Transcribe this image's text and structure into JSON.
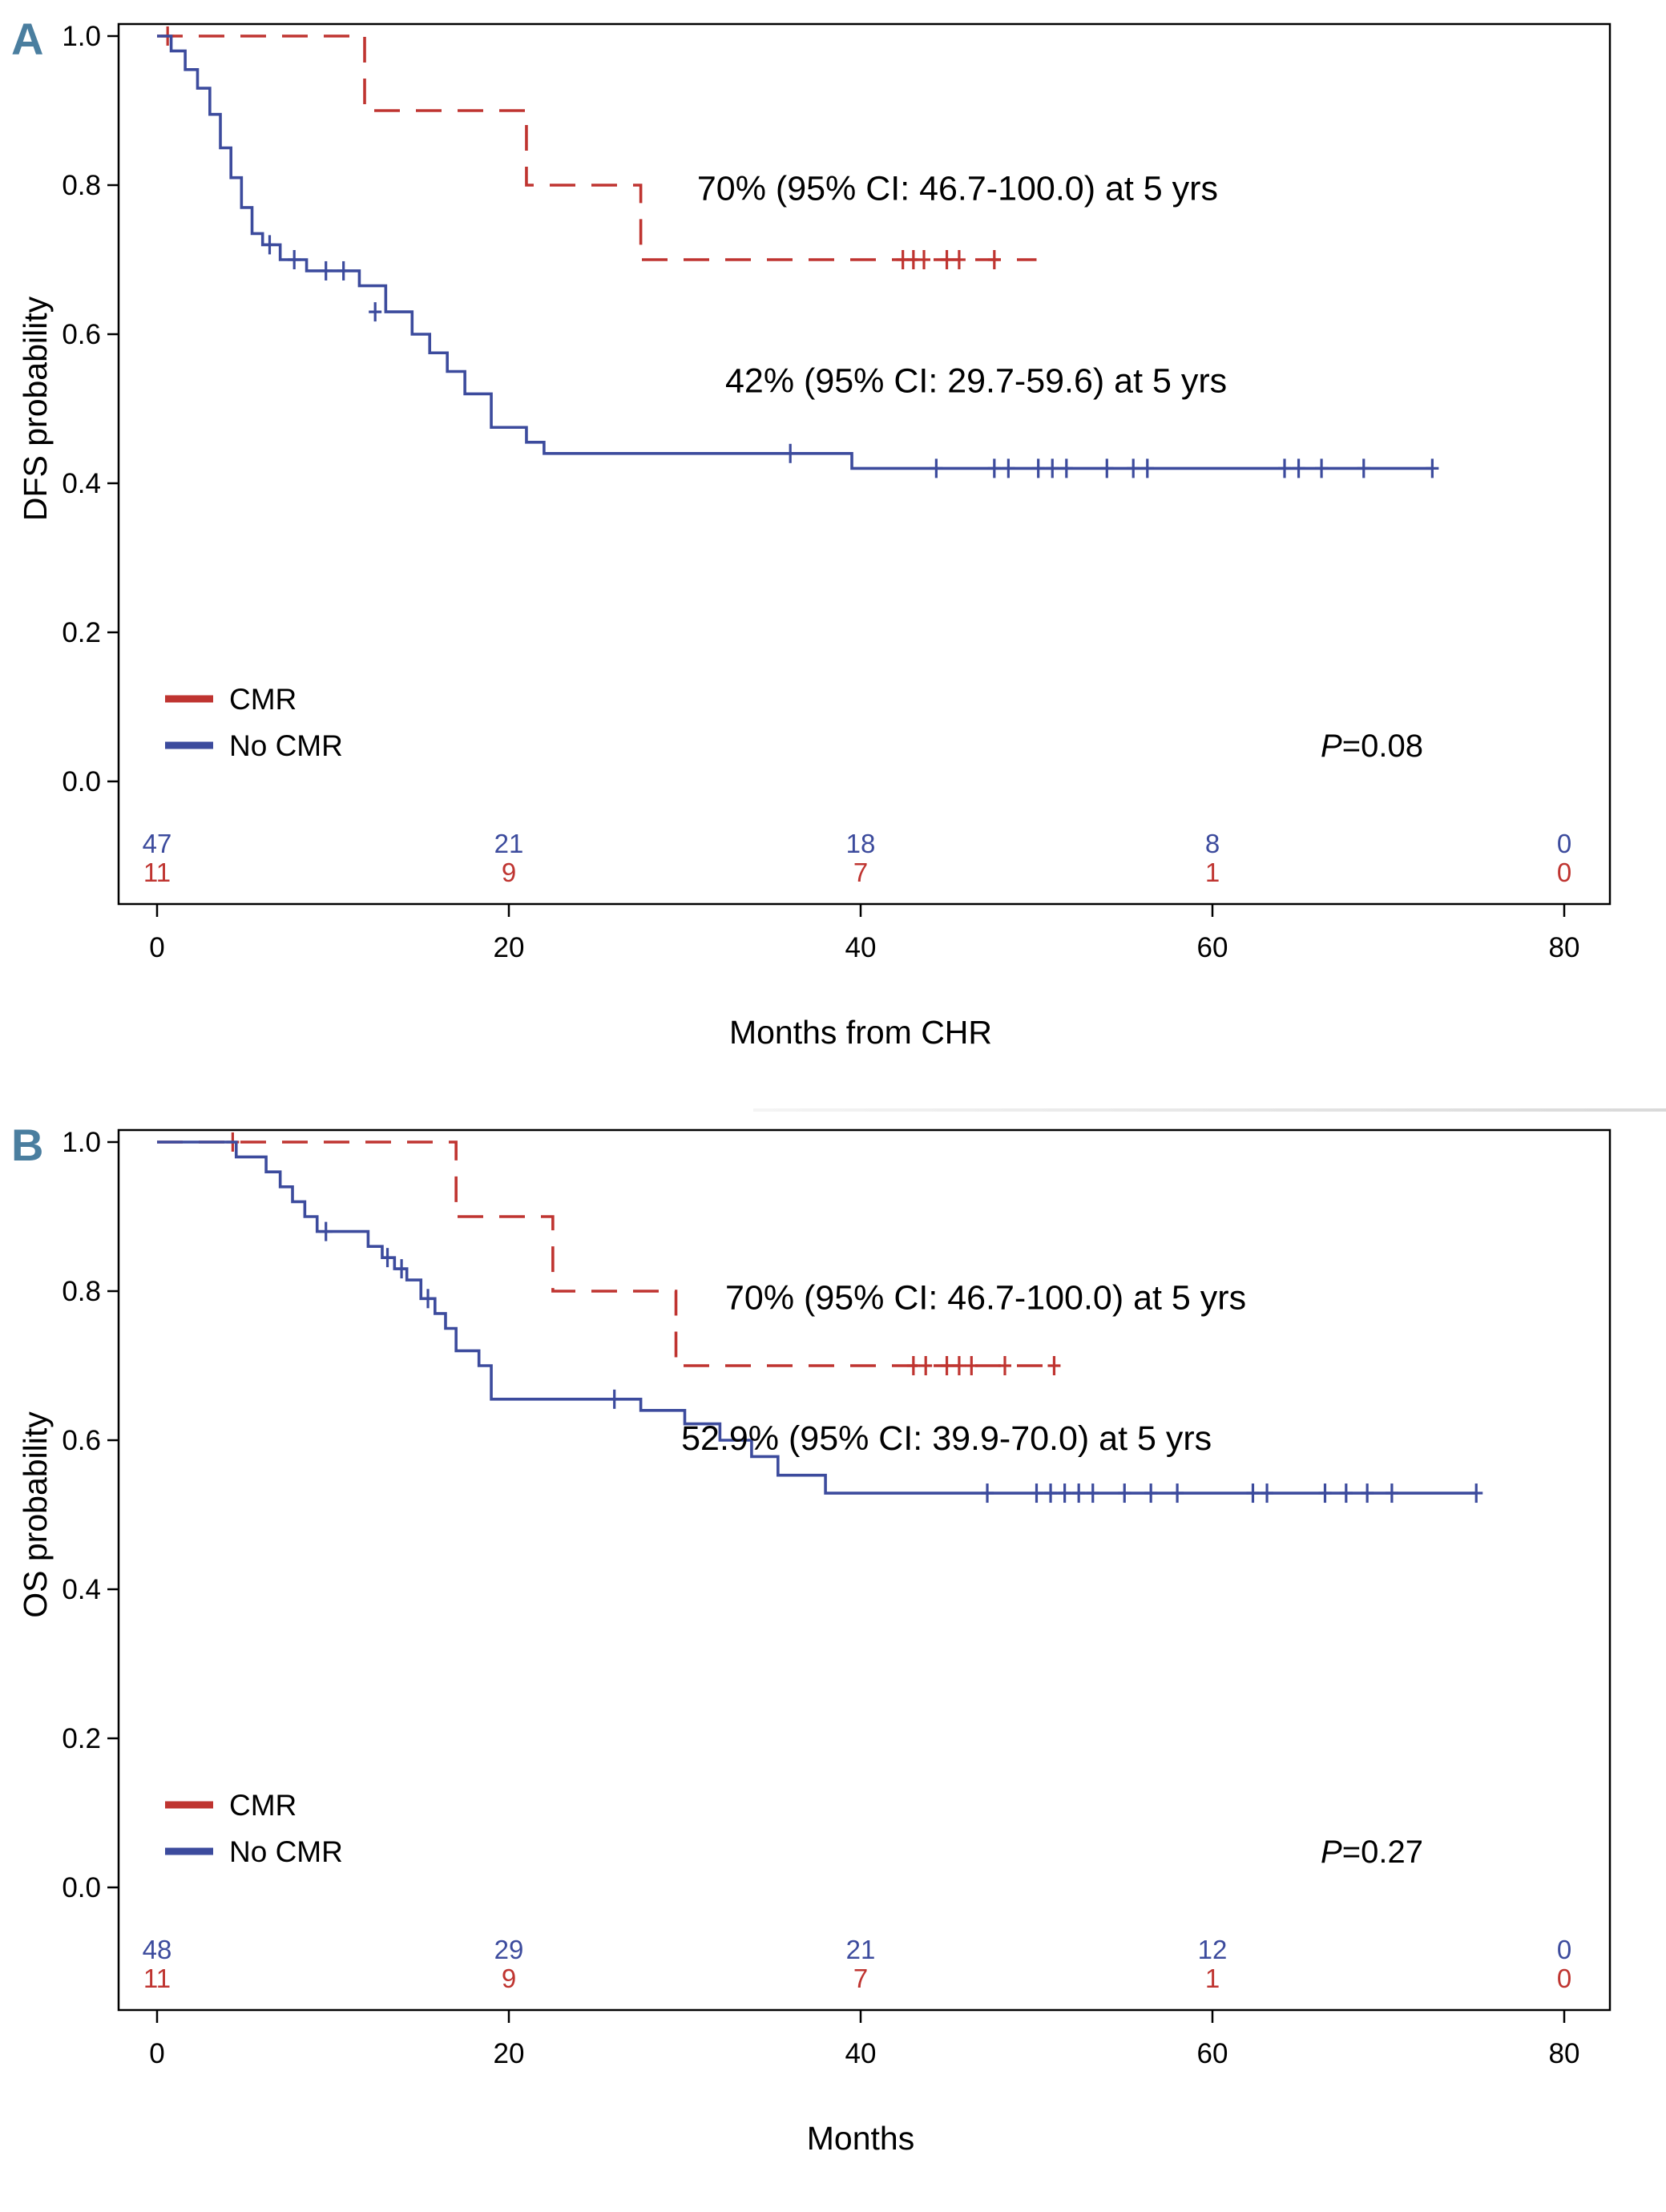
{
  "figure": {
    "panels": [
      "A",
      "B"
    ]
  },
  "colors": {
    "cmr": "#bf3430",
    "no_cmr": "#3c4b9d",
    "panel_letter": "#4a7e9f",
    "axis": "#000000"
  },
  "chart_data": [
    {
      "type": "line",
      "subtype": "kaplan-meier",
      "panel_label": "A",
      "xlabel": "Months from CHR",
      "ylabel": "DFS probability",
      "xlim": [
        0,
        80
      ],
      "ylim": [
        0.0,
        1.0
      ],
      "grid": false,
      "xticks": [
        0,
        20,
        40,
        60,
        80
      ],
      "xtick_labels": [
        "0",
        "20",
        "40",
        "60",
        "80"
      ],
      "yticks": [
        0.0,
        0.2,
        0.4,
        0.6,
        0.8,
        1.0
      ],
      "ytick_labels": [
        "0.0",
        "0.2",
        "0.4",
        "0.6",
        "0.8",
        "1.0"
      ],
      "p_value": "P=0.08",
      "legend": {
        "position": "lower-left",
        "entries": [
          {
            "label": "CMR",
            "color": "#bf3430"
          },
          {
            "label": "No CMR",
            "color": "#3c4b9d"
          }
        ]
      },
      "annotations": [
        {
          "text": "70% (95% CI: 46.7-100.0) at 5 yrs",
          "x": 30.7,
          "y": 0.78
        },
        {
          "text": "42% (95% CI: 29.7-59.6) at 5 yrs",
          "x": 32.3,
          "y": 0.522
        }
      ],
      "series": [
        {
          "name": "CMR",
          "color": "#bf3430",
          "dash": true,
          "estimate_at_5yrs": "70%",
          "steps": [
            [
              0,
              1.0
            ],
            [
              11.8,
              0.9
            ],
            [
              21,
              0.8
            ],
            [
              27.5,
              0.7
            ]
          ],
          "end_x": 50,
          "censors": [
            [
              0.6,
              1.0
            ],
            [
              42.4,
              0.7
            ],
            [
              43,
              0.7
            ],
            [
              43.6,
              0.7
            ],
            [
              44.9,
              0.7
            ],
            [
              45.6,
              0.7
            ],
            [
              47.6,
              0.7
            ]
          ]
        },
        {
          "name": "No CMR",
          "color": "#3c4b9d",
          "dash": false,
          "estimate_at_5yrs": "42%",
          "steps": [
            [
              0,
              1.0
            ],
            [
              0.8,
              0.98
            ],
            [
              1.6,
              0.955
            ],
            [
              2.3,
              0.93
            ],
            [
              3,
              0.895
            ],
            [
              3.6,
              0.85
            ],
            [
              4.2,
              0.81
            ],
            [
              4.8,
              0.77
            ],
            [
              5.4,
              0.735
            ],
            [
              6,
              0.72
            ],
            [
              7,
              0.7
            ],
            [
              8.5,
              0.685
            ],
            [
              11.5,
              0.665
            ],
            [
              13,
              0.63
            ],
            [
              14.5,
              0.6
            ],
            [
              15.5,
              0.575
            ],
            [
              16.5,
              0.55
            ],
            [
              17.5,
              0.52
            ],
            [
              19,
              0.475
            ],
            [
              21,
              0.455
            ],
            [
              22,
              0.44
            ],
            [
              39.5,
              0.42
            ]
          ],
          "end_x": 72.5,
          "censors": [
            [
              6.4,
              0.72
            ],
            [
              7.8,
              0.7
            ],
            [
              9.6,
              0.685
            ],
            [
              10.6,
              0.685
            ],
            [
              12.4,
              0.63
            ],
            [
              36,
              0.44
            ],
            [
              44.3,
              0.42
            ],
            [
              47.6,
              0.42
            ],
            [
              48.4,
              0.42
            ],
            [
              50.1,
              0.42
            ],
            [
              50.9,
              0.42
            ],
            [
              51.7,
              0.42
            ],
            [
              54,
              0.42
            ],
            [
              55.5,
              0.42
            ],
            [
              56.3,
              0.42
            ],
            [
              64.1,
              0.42
            ],
            [
              64.9,
              0.42
            ],
            [
              66.2,
              0.42
            ],
            [
              68.6,
              0.42
            ],
            [
              72.5,
              0.42
            ]
          ]
        }
      ],
      "risk_table": {
        "times": [
          0,
          20,
          40,
          60,
          80
        ],
        "rows": [
          {
            "name": "No CMR",
            "color": "#3c4b9d",
            "counts": [
              47,
              21,
              18,
              8,
              0
            ]
          },
          {
            "name": "CMR",
            "color": "#bf3430",
            "counts": [
              11,
              9,
              7,
              1,
              0
            ]
          }
        ]
      }
    },
    {
      "type": "line",
      "subtype": "kaplan-meier",
      "panel_label": "B",
      "xlabel": "Months",
      "ylabel": "OS probability",
      "xlim": [
        0,
        80
      ],
      "ylim": [
        0.0,
        1.0
      ],
      "grid": false,
      "xticks": [
        0,
        20,
        40,
        60,
        80
      ],
      "xtick_labels": [
        "0",
        "20",
        "40",
        "60",
        "80"
      ],
      "yticks": [
        0.0,
        0.2,
        0.4,
        0.6,
        0.8,
        1.0
      ],
      "ytick_labels": [
        "0.0",
        "0.2",
        "0.4",
        "0.6",
        "0.8",
        "1.0"
      ],
      "p_value": "P=0.27",
      "legend": {
        "position": "lower-left",
        "entries": [
          {
            "label": "CMR",
            "color": "#bf3430"
          },
          {
            "label": "No CMR",
            "color": "#3c4b9d"
          }
        ]
      },
      "annotations": [
        {
          "text": "70% (95% CI: 46.7-100.0) at 5 yrs",
          "x": 32.3,
          "y": 0.776
        },
        {
          "text": "52.9% (95% CI: 39.9-70.0) at 5 yrs",
          "x": 29.8,
          "y": 0.587
        }
      ],
      "series": [
        {
          "name": "CMR",
          "color": "#bf3430",
          "dash": true,
          "estimate_at_5yrs": "70%",
          "steps": [
            [
              0,
              1.0
            ],
            [
              17,
              0.9
            ],
            [
              22.5,
              0.8
            ],
            [
              29.5,
              0.7
            ]
          ],
          "end_x": 51,
          "censors": [
            [
              4.3,
              1.0
            ],
            [
              43,
              0.7
            ],
            [
              43.7,
              0.7
            ],
            [
              44.9,
              0.7
            ],
            [
              45.6,
              0.7
            ],
            [
              46.3,
              0.7
            ],
            [
              48.2,
              0.7
            ],
            [
              51,
              0.7
            ]
          ]
        },
        {
          "name": "No CMR",
          "color": "#3c4b9d",
          "dash": false,
          "estimate_at_5yrs": "52.9%",
          "steps": [
            [
              0,
              1.0
            ],
            [
              4.5,
              0.98
            ],
            [
              6.2,
              0.96
            ],
            [
              7,
              0.94
            ],
            [
              7.7,
              0.92
            ],
            [
              8.4,
              0.9
            ],
            [
              9.1,
              0.88
            ],
            [
              12,
              0.86
            ],
            [
              12.8,
              0.845
            ],
            [
              13.5,
              0.83
            ],
            [
              14.2,
              0.815
            ],
            [
              15,
              0.79
            ],
            [
              15.8,
              0.77
            ],
            [
              16.4,
              0.75
            ],
            [
              17,
              0.72
            ],
            [
              18.3,
              0.7
            ],
            [
              19,
              0.655
            ],
            [
              27.5,
              0.64
            ],
            [
              30,
              0.622
            ],
            [
              32,
              0.6
            ],
            [
              33.8,
              0.578
            ],
            [
              35.3,
              0.553
            ],
            [
              38,
              0.529
            ]
          ],
          "end_x": 75,
          "censors": [
            [
              9.6,
              0.88
            ],
            [
              13.1,
              0.845
            ],
            [
              13.9,
              0.83
            ],
            [
              15.4,
              0.79
            ],
            [
              26,
              0.655
            ],
            [
              47.2,
              0.529
            ],
            [
              50,
              0.529
            ],
            [
              50.8,
              0.529
            ],
            [
              51.6,
              0.529
            ],
            [
              52.4,
              0.529
            ],
            [
              53.2,
              0.529
            ],
            [
              55,
              0.529
            ],
            [
              56.5,
              0.529
            ],
            [
              58,
              0.529
            ],
            [
              62.3,
              0.529
            ],
            [
              63.1,
              0.529
            ],
            [
              66.4,
              0.529
            ],
            [
              67.6,
              0.529
            ],
            [
              68.8,
              0.529
            ],
            [
              70.2,
              0.529
            ],
            [
              75,
              0.529
            ]
          ]
        }
      ],
      "risk_table": {
        "times": [
          0,
          20,
          40,
          60,
          80
        ],
        "rows": [
          {
            "name": "No CMR",
            "color": "#3c4b9d",
            "counts": [
              48,
              29,
              21,
              12,
              0
            ]
          },
          {
            "name": "CMR",
            "color": "#bf3430",
            "counts": [
              11,
              9,
              7,
              1,
              0
            ]
          }
        ]
      }
    }
  ]
}
